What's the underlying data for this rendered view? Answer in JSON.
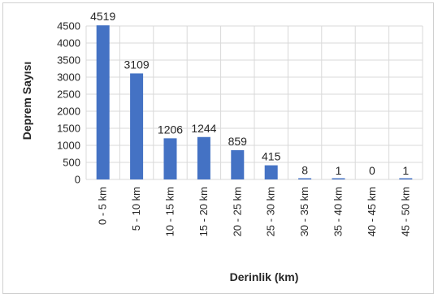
{
  "chart_data": {
    "type": "bar",
    "categories": [
      "0 - 5 km",
      "5 - 10 km",
      "10 - 15 km",
      "15 - 20 km",
      "20 - 25 km",
      "25 - 30 km",
      "30 - 35 km",
      "35 - 40 km",
      "40 - 45 km",
      "45 - 50 km"
    ],
    "values": [
      4519,
      3109,
      1206,
      1244,
      859,
      415,
      8,
      1,
      0,
      1
    ],
    "data_labels": [
      "4519",
      "3109",
      "1206",
      "1244",
      "859",
      "415",
      "8",
      "1",
      "0",
      "1"
    ],
    "title": "",
    "xlabel": "Derinlik (km)",
    "ylabel": "Deprem Sayısı",
    "ylim": [
      0,
      4500
    ],
    "yticks": [
      0,
      500,
      1000,
      1500,
      2000,
      2500,
      3000,
      3500,
      4000,
      4500
    ],
    "grid": true,
    "legend": "none",
    "colors": {
      "bar": "#4472c4",
      "grid": "#d9d9d9",
      "text": "#262626"
    }
  }
}
